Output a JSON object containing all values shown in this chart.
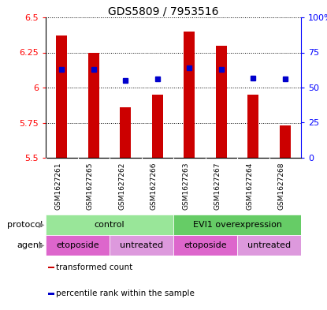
{
  "title": "GDS5809 / 7953516",
  "samples": [
    "GSM1627261",
    "GSM1627265",
    "GSM1627262",
    "GSM1627266",
    "GSM1627263",
    "GSM1627267",
    "GSM1627264",
    "GSM1627268"
  ],
  "transformed_counts": [
    6.37,
    6.25,
    5.86,
    5.95,
    6.4,
    6.3,
    5.95,
    5.73
  ],
  "percentile_ranks": [
    63,
    63,
    55,
    56,
    64,
    63,
    57,
    56
  ],
  "ylim_left": [
    5.5,
    6.5
  ],
  "yticks_left": [
    5.5,
    5.75,
    6.0,
    6.25,
    6.5
  ],
  "ytick_labels_left": [
    "5.5",
    "5.75",
    "6",
    "6.25",
    "6.5"
  ],
  "ylim_right": [
    0,
    100
  ],
  "yticks_right": [
    0,
    25,
    50,
    75,
    100
  ],
  "ytick_labels_right": [
    "0",
    "25",
    "50",
    "75",
    "100%"
  ],
  "bar_color": "#cc0000",
  "dot_color": "#0000cc",
  "bar_bottom": 5.5,
  "protocol_groups": [
    {
      "label": "control",
      "start": 0,
      "end": 4,
      "color": "#99e699"
    },
    {
      "label": "EVI1 overexpression",
      "start": 4,
      "end": 8,
      "color": "#66cc66"
    }
  ],
  "agent_groups": [
    {
      "label": "etoposide",
      "start": 0,
      "end": 2,
      "color": "#dd66cc"
    },
    {
      "label": "untreated",
      "start": 2,
      "end": 4,
      "color": "#dd99dd"
    },
    {
      "label": "etoposide",
      "start": 4,
      "end": 6,
      "color": "#dd66cc"
    },
    {
      "label": "untreated",
      "start": 6,
      "end": 8,
      "color": "#dd99dd"
    }
  ],
  "protocol_label": "protocol",
  "agent_label": "agent",
  "legend_items": [
    {
      "label": "transformed count",
      "color": "#cc0000"
    },
    {
      "label": "percentile rank within the sample",
      "color": "#0000cc"
    }
  ],
  "grid_color": "black",
  "label_bg_color": "#cccccc",
  "fig_w": 4.15,
  "fig_h": 3.93,
  "dpi": 100
}
